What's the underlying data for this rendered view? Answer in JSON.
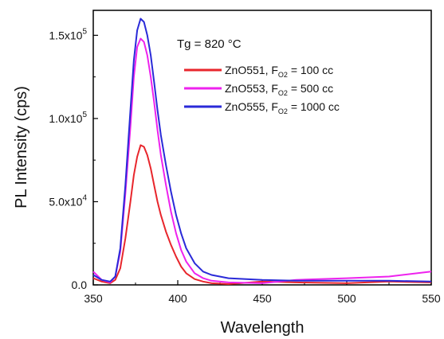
{
  "chart_data": {
    "type": "line",
    "title": "",
    "xlabel": "Wavelength",
    "ylabel": "PL Intensity (cps)",
    "xlim": [
      350,
      550
    ],
    "ylim": [
      0,
      165000
    ],
    "x_ticks": [
      350,
      400,
      450,
      500,
      550
    ],
    "y_ticks": [
      {
        "value": 0,
        "mant": "0.0",
        "exp": ""
      },
      {
        "value": 50000,
        "mant": "5.0x10",
        "exp": "4"
      },
      {
        "value": 100000,
        "mant": "1.0x10",
        "exp": "5"
      },
      {
        "value": 150000,
        "mant": "1.5x10",
        "exp": "5"
      }
    ],
    "annotation": {
      "text": "Tg = 820 °C"
    },
    "legend_position": "top-right",
    "grid": false,
    "series": [
      {
        "name_main": "ZnO551, F",
        "name_sub": "O2",
        "name_rest": " = 100 cc",
        "color": "#e8262c",
        "x": [
          350,
          355,
          360,
          363,
          366,
          369,
          372,
          374,
          376,
          378,
          380,
          382,
          384,
          386,
          388,
          390,
          393,
          396,
          399,
          402,
          405,
          410,
          415,
          420,
          430,
          450,
          470,
          500,
          525,
          550
        ],
        "y": [
          4000,
          2000,
          1000,
          3000,
          10000,
          28000,
          50000,
          66000,
          77000,
          84000,
          83000,
          78000,
          70000,
          60000,
          50000,
          42000,
          32000,
          24000,
          17000,
          11000,
          7000,
          3500,
          2000,
          1000,
          500,
          2000,
          1500,
          1000,
          2000,
          1500
        ]
      },
      {
        "name_main": "ZnO553, F",
        "name_sub": "O2",
        "name_rest": " = 500 cc",
        "color": "#ee22ee",
        "x": [
          350,
          355,
          360,
          363,
          366,
          369,
          372,
          374,
          376,
          378,
          380,
          382,
          384,
          386,
          388,
          390,
          393,
          396,
          399,
          402,
          405,
          410,
          415,
          420,
          430,
          450,
          470,
          500,
          525,
          550
        ],
        "y": [
          8000,
          3000,
          1500,
          5000,
          20000,
          55000,
          95000,
          125000,
          143000,
          148000,
          146000,
          138000,
          125000,
          110000,
          93000,
          78000,
          60000,
          44000,
          31000,
          21000,
          14000,
          7000,
          4000,
          2500,
          1500,
          1000,
          3000,
          4000,
          5000,
          8000
        ]
      },
      {
        "name_main": "ZnO555, F",
        "name_sub": "O2",
        "name_rest": " = 1000 cc",
        "color": "#2a2ad8",
        "x": [
          350,
          355,
          360,
          363,
          366,
          369,
          372,
          374,
          376,
          378,
          380,
          382,
          384,
          386,
          388,
          390,
          393,
          396,
          399,
          402,
          405,
          410,
          415,
          420,
          430,
          450,
          470,
          500,
          525,
          550
        ],
        "y": [
          6000,
          3000,
          2000,
          5000,
          22000,
          60000,
          105000,
          135000,
          153000,
          160000,
          158000,
          150000,
          138000,
          122000,
          105000,
          90000,
          72000,
          56000,
          42000,
          31000,
          22000,
          13000,
          8000,
          6000,
          4000,
          3000,
          2500,
          2500,
          2500,
          2000
        ]
      }
    ]
  }
}
